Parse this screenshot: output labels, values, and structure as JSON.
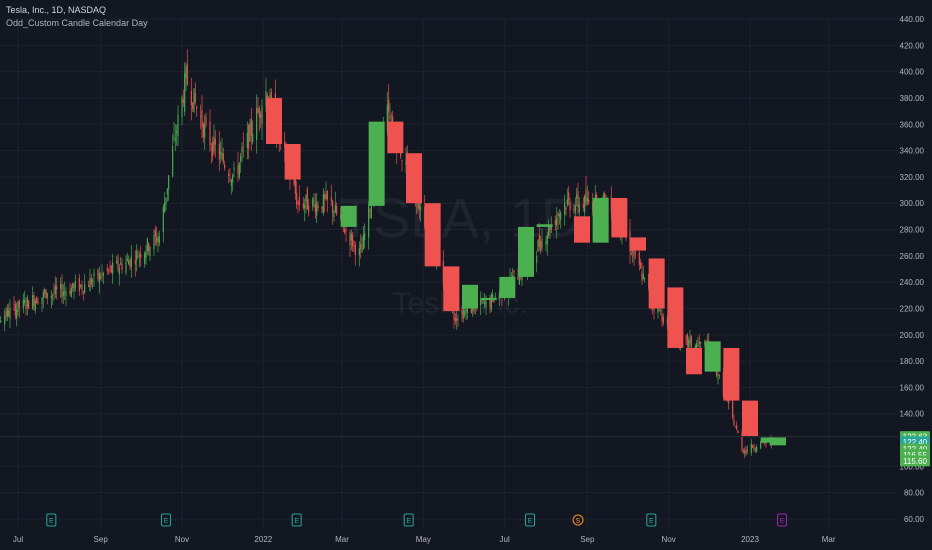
{
  "header": {
    "symbol_line": "Tesla, Inc., 1D, NASDAQ",
    "indicator_line": "Odd_Custom Candle Calendar Day"
  },
  "watermark": {
    "ticker": "TSLA, 1D",
    "name": "Tesla, Inc."
  },
  "colors": {
    "bg": "#131722",
    "up": "#4caf50",
    "down": "#f23645",
    "down_soft": "#ef5350",
    "grid": "#1e222d",
    "axis_text": "#b2b5be",
    "price_line": "#2a2e39",
    "earnings": "#26a69a",
    "split": "#f7931a",
    "earnings_next": "#9c27b0"
  },
  "chart_data": {
    "type": "candlestick",
    "title": "Tesla, Inc., 1D, NASDAQ",
    "ylim": [
      60,
      440
    ],
    "y_ticks": [
      "440.00",
      "420.00",
      "400.00",
      "380.00",
      "360.00",
      "340.00",
      "320.00",
      "300.00",
      "280.00",
      "260.00",
      "240.00",
      "220.00",
      "200.00",
      "180.00",
      "160.00",
      "140.00",
      "100.00",
      "80.00",
      "60.00"
    ],
    "x_ticks": [
      "Jul",
      "Sep",
      "Nov",
      "2022",
      "Mar",
      "May",
      "Jul",
      "Sep",
      "Nov",
      "2023",
      "Mar"
    ],
    "custom_candles": [
      {
        "date": "2022-01-03",
        "open": 380,
        "high": 402,
        "low": 336,
        "close": 345
      },
      {
        "date": "2022-01-17",
        "open": 345,
        "high": 352,
        "low": 310,
        "close": 318
      },
      {
        "date": "2022-02-28",
        "open": 282,
        "high": 300,
        "low": 260,
        "close": 298
      },
      {
        "date": "2022-03-21",
        "open": 298,
        "high": 365,
        "low": 280,
        "close": 362
      },
      {
        "date": "2022-04-04",
        "open": 362,
        "high": 384,
        "low": 330,
        "close": 338
      },
      {
        "date": "2022-04-18",
        "open": 338,
        "high": 345,
        "low": 300,
        "close": 300
      },
      {
        "date": "2022-05-02",
        "open": 300,
        "high": 302,
        "low": 250,
        "close": 252
      },
      {
        "date": "2022-05-16",
        "open": 252,
        "high": 260,
        "low": 210,
        "close": 218
      },
      {
        "date": "2022-05-30",
        "open": 220,
        "high": 240,
        "low": 208,
        "close": 238
      },
      {
        "date": "2022-06-13",
        "open": 228,
        "high": 236,
        "low": 215,
        "close": 228
      },
      {
        "date": "2022-06-27",
        "open": 228,
        "high": 246,
        "low": 218,
        "close": 244
      },
      {
        "date": "2022-07-11",
        "open": 244,
        "high": 285,
        "low": 242,
        "close": 282
      },
      {
        "date": "2022-07-25",
        "open": 282,
        "high": 296,
        "low": 278,
        "close": 284
      },
      {
        "date": "2022-08-22",
        "open": 290,
        "high": 300,
        "low": 276,
        "close": 270
      },
      {
        "date": "2022-09-05",
        "open": 270,
        "high": 306,
        "low": 266,
        "close": 304
      },
      {
        "date": "2022-09-19",
        "open": 304,
        "high": 314,
        "low": 272,
        "close": 274
      },
      {
        "date": "2022-10-03",
        "open": 274,
        "high": 282,
        "low": 254,
        "close": 264
      },
      {
        "date": "2022-10-17",
        "open": 258,
        "high": 262,
        "low": 210,
        "close": 220
      },
      {
        "date": "2022-10-31",
        "open": 236,
        "high": 238,
        "low": 196,
        "close": 190
      },
      {
        "date": "2022-11-14",
        "open": 190,
        "high": 200,
        "low": 160,
        "close": 170
      },
      {
        "date": "2022-11-28",
        "open": 172,
        "high": 198,
        "low": 168,
        "close": 195
      },
      {
        "date": "2022-12-12",
        "open": 190,
        "high": 194,
        "low": 146,
        "close": 150
      },
      {
        "date": "2022-12-26",
        "open": 150,
        "high": 152,
        "low": 112,
        "close": 123
      },
      {
        "date": "2023-01-09",
        "open": 118,
        "high": 123,
        "low": 110,
        "close": 122
      },
      {
        "date": "2023-01-16",
        "open": 116,
        "high": 124,
        "low": 115,
        "close": 122
      }
    ],
    "price_labels": [
      {
        "value": "122.63",
        "price": 122.63,
        "color": "#4caf50"
      },
      {
        "value": "122.40",
        "price": 118.6,
        "color": "#26a69a"
      },
      {
        "value": "122.40",
        "price": 113.2,
        "color": "#4caf50"
      },
      {
        "value": "116.55",
        "price": 108.8,
        "color": "#4caf50"
      },
      {
        "value": "115.60",
        "price": 104.2,
        "color": "#4caf50"
      }
    ],
    "events": [
      {
        "date": "2021-07-26",
        "label": "E",
        "kind": "earnings"
      },
      {
        "date": "2021-10-20",
        "label": "E",
        "kind": "earnings"
      },
      {
        "date": "2022-01-26",
        "label": "E",
        "kind": "earnings"
      },
      {
        "date": "2022-04-20",
        "label": "E",
        "kind": "earnings"
      },
      {
        "date": "2022-07-20",
        "label": "E",
        "kind": "earnings"
      },
      {
        "date": "2022-08-25",
        "label": "S",
        "kind": "split"
      },
      {
        "date": "2022-10-19",
        "label": "E",
        "kind": "earnings"
      },
      {
        "date": "2023-01-25",
        "label": "E",
        "kind": "earnings_next"
      }
    ]
  }
}
